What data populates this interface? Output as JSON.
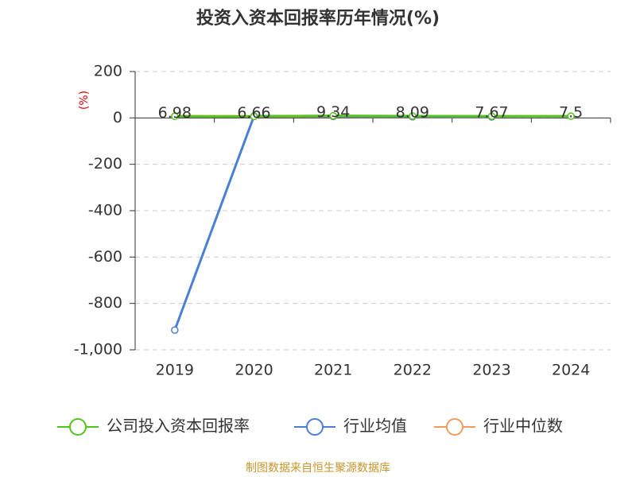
{
  "chart_data": {
    "type": "line",
    "title": "投资入资本回报率历年情况(%)",
    "y_label": "(%)",
    "source": "制图数据来自恒生聚源数据库",
    "categories": [
      "2019",
      "2020",
      "2021",
      "2022",
      "2023",
      "2024"
    ],
    "series": [
      {
        "name": "公司投入资本回报率",
        "color": "#52c41a",
        "values": [
          6.98,
          6.66,
          9.34,
          8.09,
          7.67,
          7.5
        ],
        "labels": true
      },
      {
        "name": "行业均值",
        "color": "#4a7fd8",
        "values": [
          -915,
          8,
          7,
          6,
          5,
          null
        ]
      },
      {
        "name": "行业中位数",
        "color": "#f59a5c",
        "values": [
          8,
          7,
          6,
          5,
          4,
          null
        ]
      }
    ],
    "ylim": [
      -1000,
      200
    ],
    "yticks": [
      {
        "value": -1000,
        "label": "-1,000"
      },
      -800,
      -600,
      -400,
      -200,
      0,
      200
    ],
    "grid": true
  }
}
